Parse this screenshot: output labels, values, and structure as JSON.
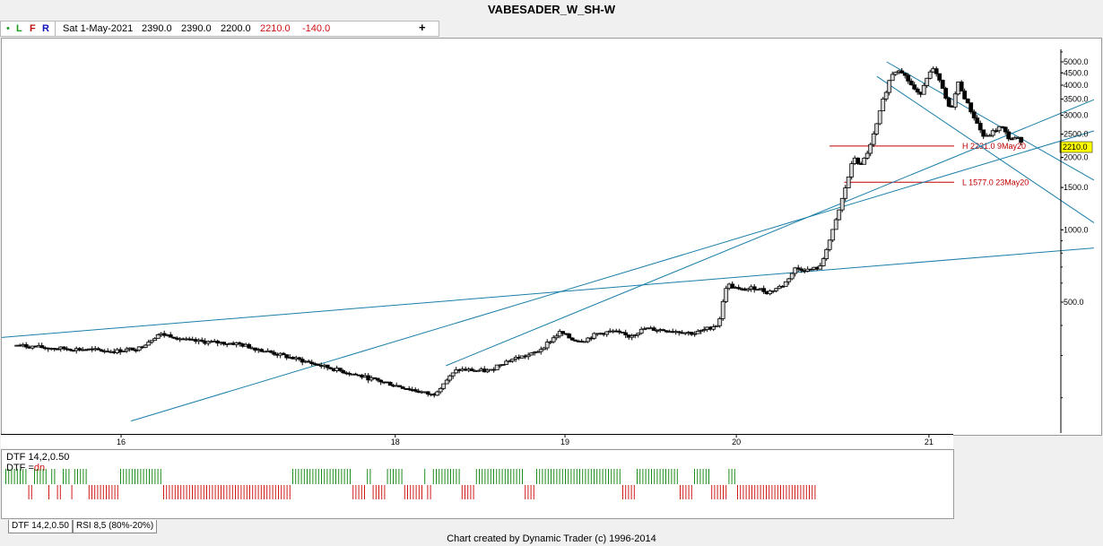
{
  "window": {
    "title": "VABESADER_W_SH-W"
  },
  "toolbar": {
    "dot": "•",
    "letters": [
      "L",
      "F",
      "R"
    ],
    "date": "Sat 1-May-2021",
    "open": "2390.0",
    "high": "2390.0",
    "low": "2200.0",
    "close": "2210.0",
    "change": "-140.0",
    "plus_icon": "+"
  },
  "chart_data": {
    "type": "candlestick",
    "title": "VABESADER_W_SH-W",
    "y_scale": "log",
    "ylim": [
      180,
      6200
    ],
    "y_tick_labels": [
      "5000.0",
      "4500.0",
      "4000.0",
      "3500.0",
      "3000.0",
      "2500.0",
      "2000.0",
      "1500.0",
      "1000.0",
      "500.0"
    ],
    "y_tick_values": [
      5000,
      4500,
      4000,
      3500,
      3000,
      2500,
      2000,
      1500,
      1000,
      500
    ],
    "x_tick_labels": [
      "16",
      "18",
      "19",
      "20",
      "21"
    ],
    "current_price_label": "2210.0",
    "horizontal_levels": [
      {
        "label": "H 2231.0 9May20",
        "value": 2231.0
      },
      {
        "label": "L 1577.0 23May20",
        "value": 1577.0
      }
    ],
    "price_path": [
      [
        2015.35,
        330
      ],
      [
        2015.55,
        322
      ],
      [
        2015.75,
        318
      ],
      [
        2015.95,
        312
      ],
      [
        2016.1,
        322
      ],
      [
        2016.22,
        368
      ],
      [
        2016.3,
        362
      ],
      [
        2016.4,
        345
      ],
      [
        2016.55,
        340
      ],
      [
        2016.7,
        336
      ],
      [
        2017.9,
        205
      ],
      [
        2017.97,
        232
      ],
      [
        2018.05,
        262
      ],
      [
        2018.25,
        258
      ],
      [
        2018.3,
        275
      ],
      [
        2018.4,
        292
      ],
      [
        2018.5,
        302
      ],
      [
        2018.55,
        315
      ],
      [
        2018.68,
        375
      ],
      [
        2018.75,
        350
      ],
      [
        2018.82,
        345
      ],
      [
        2018.9,
        368
      ],
      [
        2019.0,
        378
      ],
      [
        2019.1,
        360
      ],
      [
        2019.2,
        388
      ],
      [
        2019.3,
        383
      ],
      [
        2019.4,
        378
      ],
      [
        2019.5,
        370
      ],
      [
        2019.55,
        380
      ],
      [
        2019.65,
        405
      ],
      [
        2019.7,
        595
      ],
      [
        2019.78,
        560
      ],
      [
        2019.88,
        575
      ],
      [
        2019.95,
        548
      ],
      [
        2020.05,
        590
      ],
      [
        2020.12,
        690
      ],
      [
        2020.2,
        680
      ],
      [
        2020.28,
        700
      ],
      [
        2020.3,
        800
      ],
      [
        2020.34,
        940
      ],
      [
        2020.38,
        1150
      ],
      [
        2020.45,
        1700
      ],
      [
        2020.48,
        2020
      ],
      [
        2020.52,
        1830
      ],
      [
        2020.58,
        2231
      ],
      [
        2020.62,
        2750
      ],
      [
        2020.66,
        3500
      ],
      [
        2020.71,
        4450
      ],
      [
        2020.76,
        4700
      ],
      [
        2020.82,
        4100
      ],
      [
        2020.88,
        3600
      ],
      [
        2020.93,
        4400
      ],
      [
        2020.97,
        4650
      ],
      [
        2021.02,
        3900
      ],
      [
        2021.07,
        3100
      ],
      [
        2021.12,
        4100
      ],
      [
        2021.17,
        3400
      ],
      [
        2021.22,
        2900
      ],
      [
        2021.28,
        2400
      ],
      [
        2021.33,
        2550
      ],
      [
        2021.38,
        2700
      ],
      [
        2021.43,
        2400
      ],
      [
        2021.5,
        2390
      ],
      [
        2021.52,
        2210
      ]
    ],
    "trendlines": [
      {
        "name": "long-flat",
        "from": [
          2015.0,
          345
        ],
        "to": [
          2021.95,
          840
        ]
      },
      {
        "name": "channel-lower",
        "from": [
          2016.05,
          160
        ],
        "to": [
          2021.95,
          2580
        ]
      },
      {
        "name": "channel-upper",
        "from": [
          2017.98,
          272
        ],
        "to": [
          2021.95,
          3480
        ]
      },
      {
        "name": "down-upper",
        "from": [
          2020.68,
          5000
        ],
        "to": [
          2021.95,
          1610
        ]
      },
      {
        "name": "down-lower",
        "from": [
          2020.62,
          4350
        ],
        "to": [
          2021.95,
          1070
        ]
      }
    ]
  },
  "indicator": {
    "label_1": "DTF 14,2,0.50",
    "label_2_prefix": "DTF =",
    "label_2_value": "dn",
    "runs": [
      [
        "u",
        8
      ],
      [
        "d",
        2
      ],
      [
        "u",
        5
      ],
      [
        "d",
        1
      ],
      [
        "u",
        2
      ],
      [
        "d",
        2
      ],
      [
        "u",
        3
      ],
      [
        "d",
        1
      ],
      [
        "u",
        5
      ],
      [
        "d",
        11
      ],
      [
        "u",
        15
      ],
      [
        "d",
        45
      ],
      [
        "u",
        21
      ],
      [
        "d",
        5
      ],
      [
        "u",
        2
      ],
      [
        "d",
        5
      ],
      [
        "u",
        6
      ],
      [
        "d",
        7
      ],
      [
        "u",
        1
      ],
      [
        "d",
        2
      ],
      [
        "u",
        10
      ],
      [
        "d",
        5
      ],
      [
        "u",
        17
      ],
      [
        "d",
        4
      ],
      [
        "u",
        30
      ],
      [
        "d",
        5
      ],
      [
        "u",
        15
      ],
      [
        "d",
        5
      ],
      [
        "u",
        6
      ],
      [
        "d",
        6
      ],
      [
        "u",
        3
      ],
      [
        "d",
        28
      ]
    ],
    "colors": {
      "up": "#1d8a1d",
      "down": "#d01a1a"
    }
  },
  "tabs": [
    "DTF 14,2,0.50",
    "RSI 8,5 (80%-20%)"
  ],
  "footer": "Chart created by Dynamic Trader  (c) 1996-2014"
}
